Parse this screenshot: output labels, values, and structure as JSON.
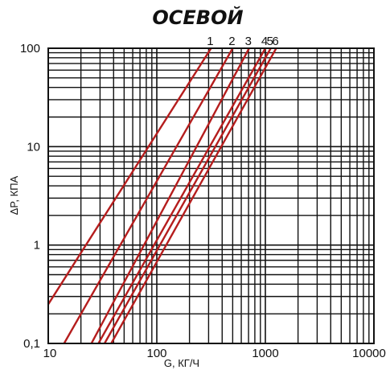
{
  "chart_data": {
    "type": "line",
    "title": "ОСЕВОЙ",
    "xlabel": "G, КГ/Ч",
    "ylabel": "ΔP, КПА",
    "xscale": "log",
    "yscale": "log",
    "xlim": [
      10,
      10000
    ],
    "ylim": [
      0.1,
      100
    ],
    "grid": true,
    "x_ticks": [
      "10",
      "100",
      "1000",
      "10000"
    ],
    "y_ticks": [
      "0,1",
      "1",
      "10",
      "100"
    ],
    "series": [
      {
        "name": "1",
        "x": [
          10,
          316
        ],
        "y": [
          0.25,
          100
        ]
      },
      {
        "name": "2",
        "x": [
          14,
          500
        ],
        "y": [
          0.1,
          100
        ]
      },
      {
        "name": "3",
        "x": [
          25,
          708
        ],
        "y": [
          0.1,
          100
        ]
      },
      {
        "name": "4",
        "x": [
          29,
          1000
        ],
        "y": [
          0.1,
          100
        ]
      },
      {
        "name": "5",
        "x": [
          33,
          1122
        ],
        "y": [
          0.1,
          100
        ]
      },
      {
        "name": "6",
        "x": [
          38,
          1259
        ],
        "y": [
          0.1,
          100
        ]
      }
    ],
    "colors": {
      "curve": "#b51d1d",
      "grid": "#111111"
    }
  }
}
